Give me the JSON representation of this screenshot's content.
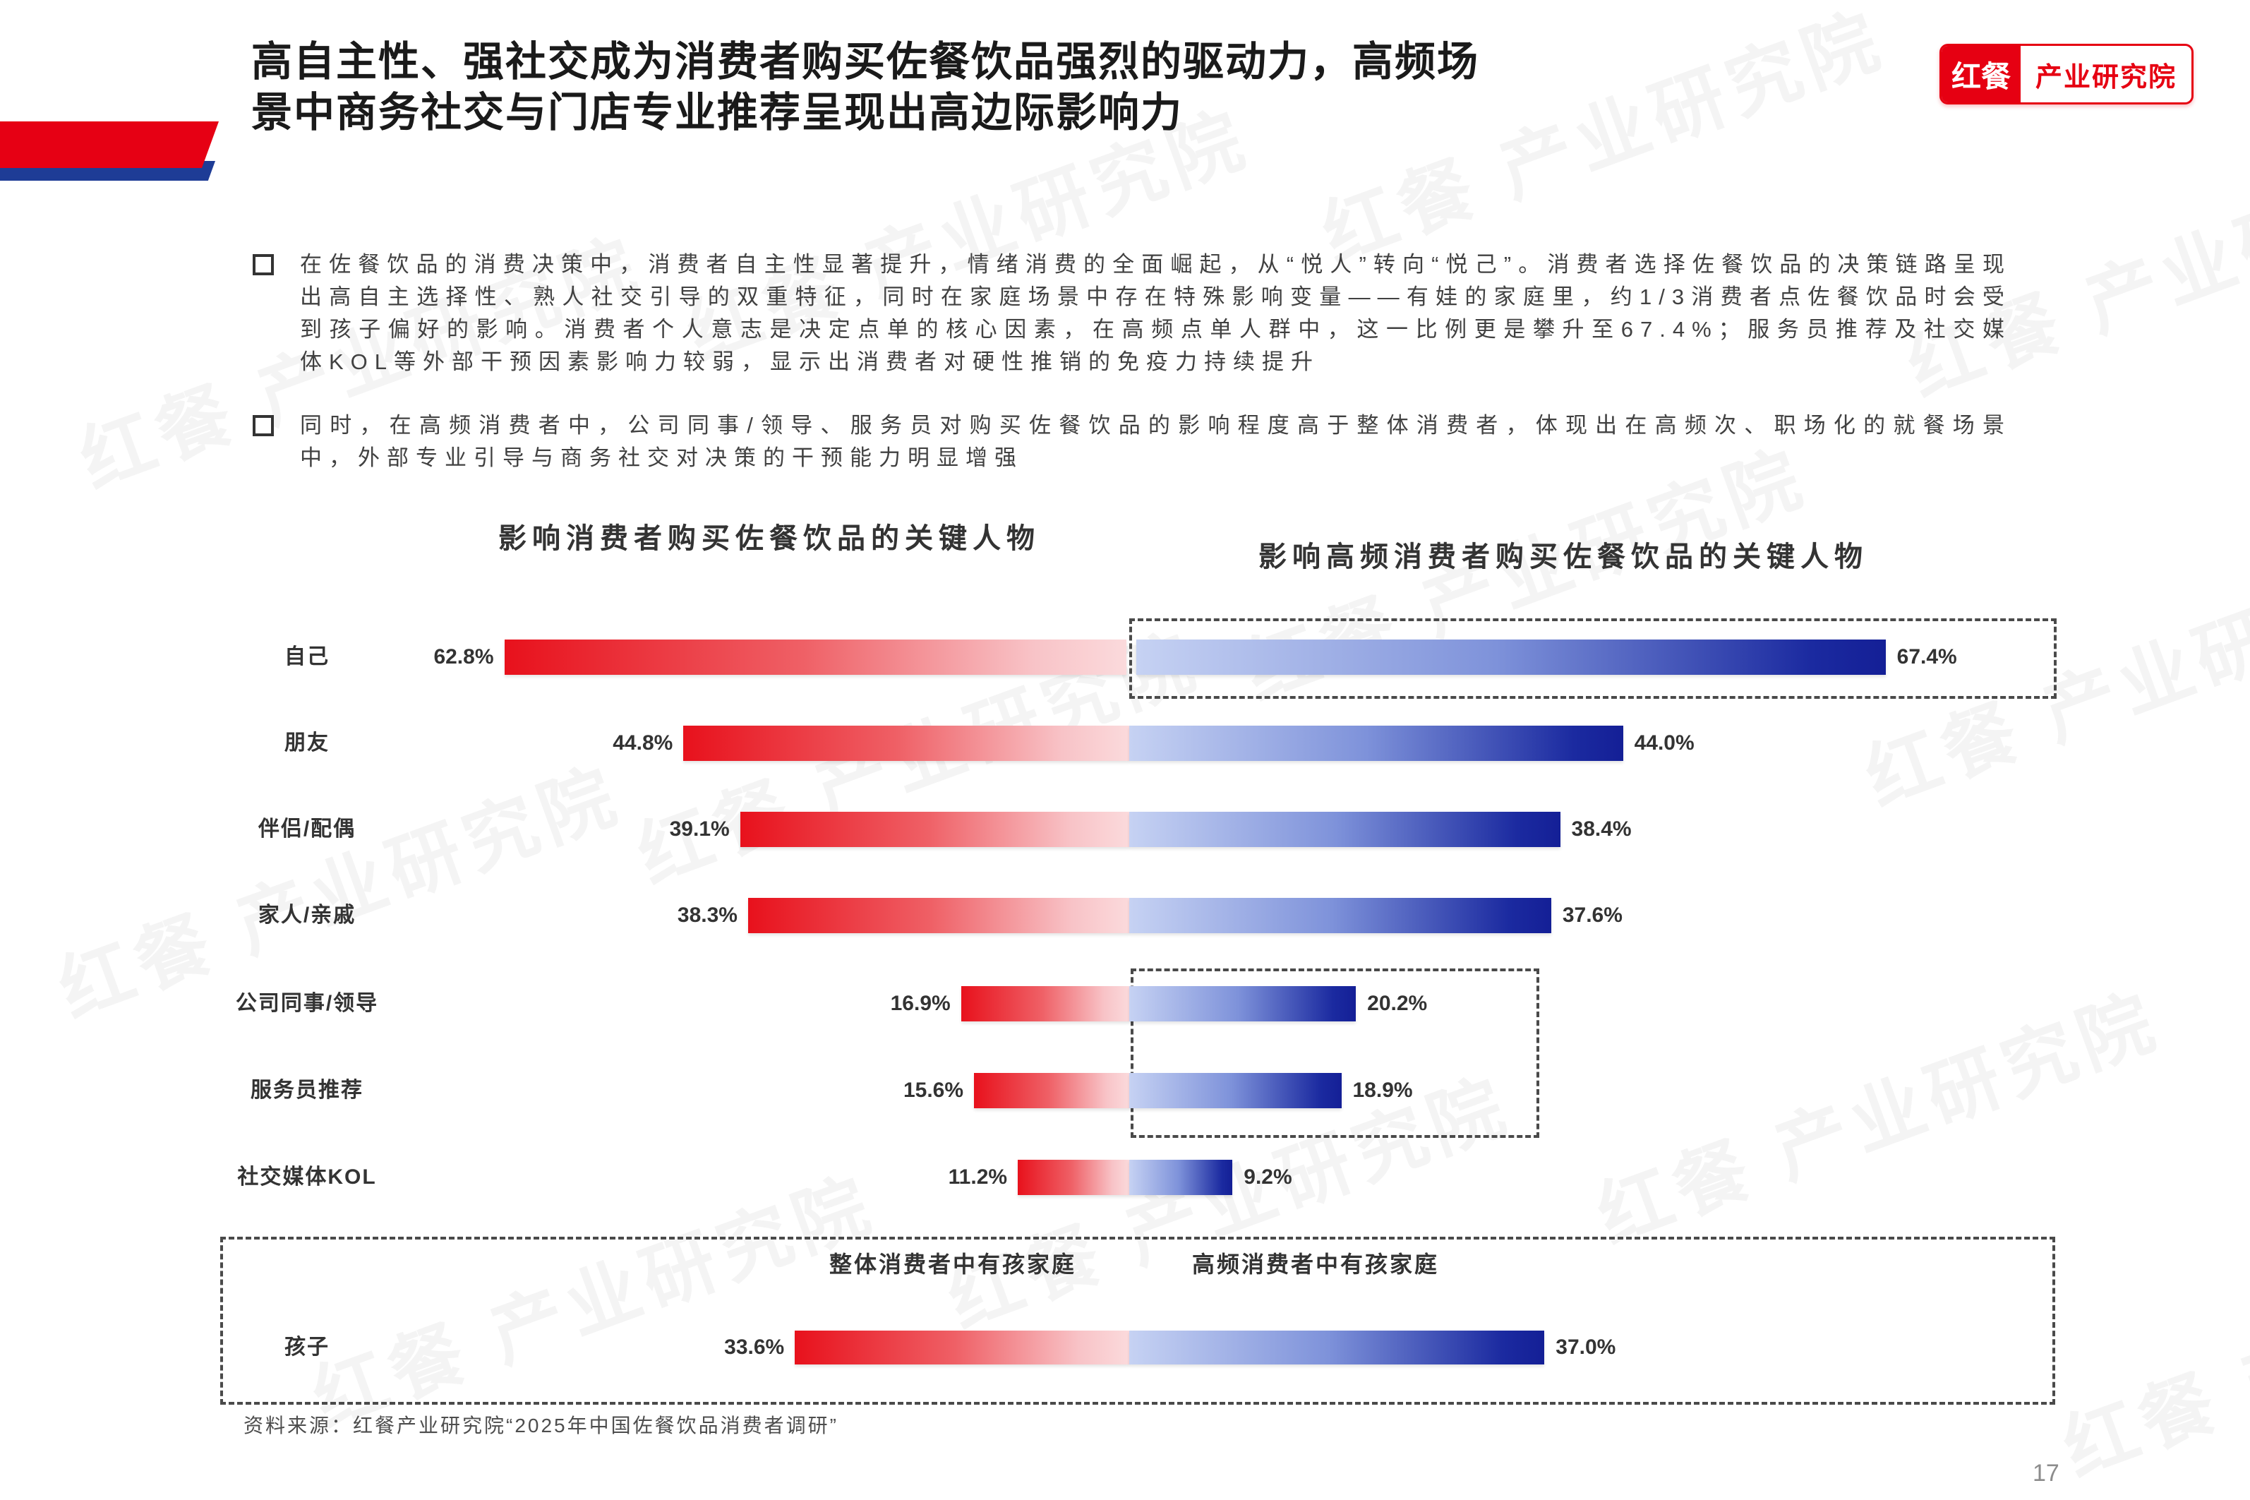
{
  "page": {
    "title_line1": "高自主性、强社交成为消费者购买佐餐饮品强烈的驱动力，高频场",
    "title_line2": "景中商务社交与门店专业推荐呈现出高边际影响力",
    "source": "资料来源：红餐产业研究院“2025年中国佐餐饮品消费者调研”",
    "page_number": "17",
    "watermark_text": "红餐 产业研究院"
  },
  "logo": {
    "brand": "红餐",
    "org": "产业研究院"
  },
  "bullets": [
    {
      "text": "在佐餐饮品的消费决策中，消费者自主性显著提升，情绪消费的全面崛起，从“悦人”转向“悦己”。消费者选择佐餐饮品的决策链路呈现出高自主选择性、熟人社交引导的双重特征，同时在家庭场景中存在特殊影响变量——有娃的家庭里，约1/3消费者点佐餐饮品时会受到孩子偏好的影响。消费者个人意志是决定点单的核心因素，在高频点单人群中，这一比例更是攀升至67.4%；服务员推荐及社交媒体KOL等外部干预因素影响力较弱，显示出消费者对硬性推销的免疫力持续提升"
    },
    {
      "text": "同时，在高频消费者中，公司同事/领导、服务员对购买佐餐饮品的影响程度高于整体消费者，体现出在高频次、职场化的就餐场景中，外部专业引导与商务社交对决策的干预能力明显增强"
    }
  ],
  "chart_data": {
    "type": "bar",
    "layout": "diverging-horizontal",
    "left_title": "影响消费者购买佐餐饮品的关键人物",
    "right_title": "影响高频消费者购买佐餐饮品的关键人物",
    "categories": [
      "自己",
      "朋友",
      "伴侣/配偶",
      "家人/亲戚",
      "公司同事/领导",
      "服务员推荐",
      "社交媒体KOL"
    ],
    "series": [
      {
        "name": "影响消费者购买佐餐饮品的关键人物",
        "color_deep": "#e8111c",
        "color_light": "#fbdadc",
        "values": [
          62.8,
          44.8,
          39.1,
          38.3,
          16.9,
          15.6,
          11.2
        ]
      },
      {
        "name": "影响高频消费者购买佐餐饮品的关键人物",
        "color_deep": "#141f96",
        "color_light": "#c6d2f3",
        "values": [
          67.4,
          44.0,
          38.4,
          37.6,
          20.2,
          18.9,
          9.2
        ]
      }
    ],
    "value_suffix": "%",
    "child_section": {
      "left_header": "整体消费者中有孩家庭",
      "right_header": "高频消费者中有孩家庭",
      "category": "孩子",
      "left_value": 33.6,
      "right_value": 37.0
    },
    "highlight_boxes": [
      "自己-高频",
      "公司同事/领导+服务员推荐-高频",
      "孩子-整段"
    ]
  }
}
